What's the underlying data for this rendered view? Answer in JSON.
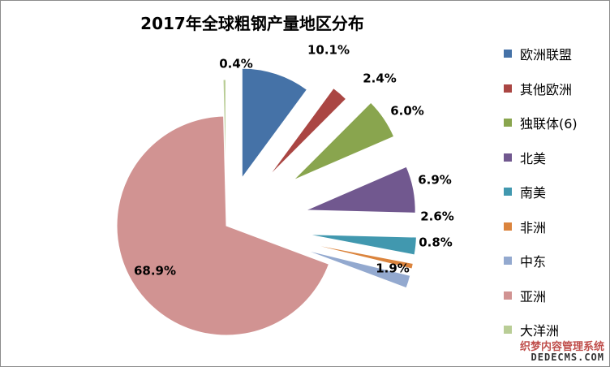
{
  "chart_data": {
    "type": "pie",
    "title": "2017年全球粗钢产量地区分布",
    "labels": [
      "欧洲联盟",
      "其他欧洲",
      "独联体(6)",
      "北美",
      "南美",
      "非洲",
      "中东",
      "亚洲",
      "大洋洲"
    ],
    "values": [
      10.1,
      2.4,
      6.0,
      6.9,
      2.6,
      0.8,
      1.9,
      68.9,
      0.4
    ],
    "value_labels": [
      "10.1%",
      "2.4%",
      "6.0%",
      "6.9%",
      "2.6%",
      "0.8%",
      "1.9%",
      "68.9%",
      "0.4%"
    ],
    "colors": [
      "#4572A7",
      "#AA4643",
      "#89A54E",
      "#71588F",
      "#4198AF",
      "#DB843D",
      "#93A9CF",
      "#D19392",
      "#B9CD96"
    ],
    "legend_position": "right"
  },
  "watermark": {
    "line1": "织梦内容管理系统",
    "line2": "DEDECMS.COM"
  }
}
